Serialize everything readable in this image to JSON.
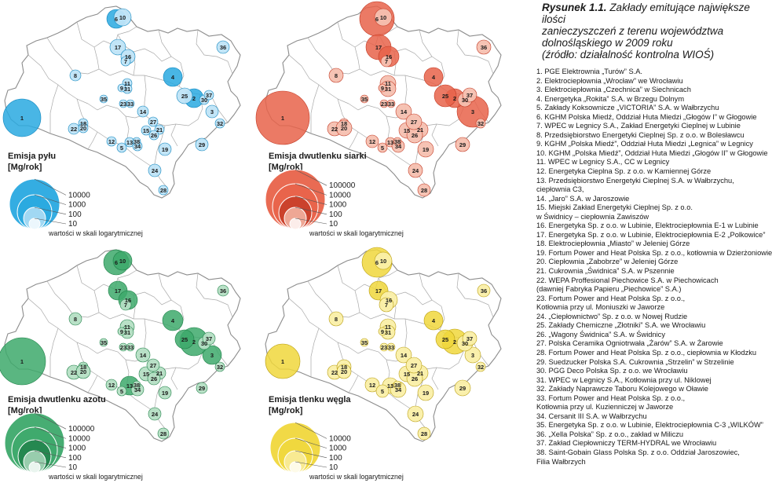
{
  "figure": {
    "caption_label": "Rysunek 1.1.",
    "caption_lines": [
      "Zakłady emitujące największe ilości",
      "zanieczyszczeń z terenu województwa",
      "dolnośląskiego w 2009 roku",
      "(źródło: działalność kontrolna WIOŚ)"
    ]
  },
  "panels": [
    {
      "id": "pm",
      "title_lines": [
        "Emisja pyłu",
        "[Mg/rok]"
      ],
      "scale_values": [
        "10000",
        "1000",
        "100",
        "10"
      ],
      "scale_note": "wartości w skali logarytmicznej",
      "colors": {
        "fill": "#29a9e0",
        "light": "#bfe4f7",
        "edge": "#0d84bd"
      },
      "sizes": {
        "1": 24,
        "2": 12,
        "3": 8,
        "4": 12,
        "5": 6,
        "6": 12,
        "7": 6,
        "8": 7,
        "9": 5,
        "10": 11,
        "11": 6,
        "12": 6,
        "13": 6,
        "14": 7,
        "15": 6,
        "16": 9,
        "17": 10,
        "18": 6,
        "19": 8,
        "20": 6,
        "21": 6,
        "22": 7,
        "23": 5,
        "24": 8,
        "25": 10,
        "26": 6,
        "27": 6,
        "28": 6,
        "29": 8,
        "30": 6,
        "31": 6,
        "32": 6,
        "33": 5,
        "34": 6,
        "35": 5,
        "36": 8,
        "37": 6,
        "38": 5
      }
    },
    {
      "id": "so2",
      "title_lines": [
        "Emisja dwutlenku siarki",
        "[Mg/rok]"
      ],
      "scale_values": [
        "100000",
        "10000",
        "1000",
        "100",
        "10"
      ],
      "scale_note": "wartości w skali logarytmicznej",
      "colors": {
        "fill": "#e8634a",
        "light": "#f6c0b0",
        "edge": "#c33a24"
      },
      "sizes": {
        "1": 34,
        "2": 12,
        "3": 20,
        "4": 12,
        "5": 6,
        "6": 22,
        "7": 7,
        "8": 9,
        "9": 5,
        "10": 11,
        "11": 10,
        "12": 8,
        "13": 6,
        "14": 10,
        "15": 10,
        "16": 13,
        "17": 16,
        "18": 6,
        "19": 10,
        "20": 10,
        "21": 10,
        "22": 9,
        "23": 5,
        "24": 9,
        "25": 14,
        "26": 10,
        "27": 10,
        "28": 8,
        "29": 9,
        "30": 9,
        "31": 10,
        "32": 6,
        "33": 5,
        "34": 8,
        "35": 5,
        "36": 9,
        "37": 9,
        "38": 5
      }
    },
    {
      "id": "no2",
      "title_lines": [
        "Emisja dwutlenku azotu",
        "[Mg/rok]"
      ],
      "scale_values": [
        "100000",
        "10000",
        "1000",
        "100",
        "10"
      ],
      "scale_note": "wartości w skali logarytmicznej",
      "colors": {
        "fill": "#3da96b",
        "light": "#b5dfc4",
        "edge": "#1f8048"
      },
      "sizes": {
        "1": 30,
        "2": 18,
        "3": 12,
        "4": 13,
        "5": 6,
        "6": 16,
        "7": 7,
        "8": 8,
        "9": 5,
        "10": 12,
        "11": 9,
        "12": 7,
        "13": 12,
        "14": 9,
        "15": 9,
        "16": 12,
        "17": 12,
        "18": 6,
        "19": 8,
        "20": 9,
        "21": 8,
        "22": 9,
        "23": 5,
        "24": 8,
        "25": 12,
        "26": 8,
        "27": 8,
        "28": 7,
        "29": 7,
        "30": 8,
        "31": 8,
        "32": 6,
        "33": 5,
        "34": 8,
        "35": 5,
        "36": 7,
        "37": 8,
        "38": 5
      }
    },
    {
      "id": "co",
      "title_lines": [
        "Emisja tlenku węgla",
        "[Mg/rok]"
      ],
      "scale_values": [
        "10000",
        "1000",
        "100",
        "10"
      ],
      "scale_note": "wartości w skali logarytmicznej",
      "colors": {
        "fill": "#f0d73c",
        "light": "#faefa8",
        "edge": "#b89d10"
      },
      "sizes": {
        "1": 22,
        "2": 16,
        "3": 10,
        "4": 12,
        "5": 8,
        "6": 19,
        "7": 9,
        "8": 9,
        "9": 5,
        "10": 11,
        "11": 10,
        "12": 9,
        "13": 10,
        "14": 10,
        "15": 10,
        "16": 11,
        "17": 12,
        "18": 9,
        "19": 10,
        "20": 9,
        "21": 10,
        "22": 9,
        "23": 5,
        "24": 10,
        "25": 12,
        "26": 10,
        "27": 10,
        "28": 8,
        "29": 10,
        "30": 10,
        "31": 9,
        "32": 6,
        "33": 5,
        "34": 10,
        "35": 5,
        "36": 8,
        "37": 9,
        "38": 5
      }
    }
  ],
  "plant_labels": [
    "1",
    "2",
    "3",
    "4",
    "5",
    "6",
    "7",
    "8",
    "9",
    "10",
    "11",
    "12",
    "13",
    "14",
    "15",
    "16",
    "17",
    "18",
    "19",
    "20",
    "21",
    "22",
    "23",
    "24",
    "25",
    "26",
    "27",
    "28",
    "29",
    "30",
    "31",
    "32",
    "33",
    "34",
    "35",
    "36",
    "37",
    "38"
  ],
  "plant_list": [
    "1. PGE Elektrownia „Turów” S.A.",
    "2. Elektrociepłownia „Wrocław” we Wrocławiu",
    "3. Elektrociepłownia „Czechnica” w Siechnicach",
    "4. Energetyka „Rokita” S.A. w Brzegu Dolnym",
    "5. Zakłady Koksownicze „VICTORIA” S.A. w Wałbrzychu",
    "6. KGHM Polska Miedź, Oddział Huta Miedzi „Głogów I” w Głogowie",
    "7. WPEC w Legnicy S.A., Zakład Energetyki Cieplnej w Lubinie",
    "8. Przedsiębiorstwo Energetyki Cieplnej Sp. z o.o. w Bolesławcu",
    "9. KGHM „Polska Miedź”, Oddział Huta Miedzi „Legnica” w Legnicy",
    "10. KGHM „Polska Miedź”, Oddział Huta Miedzi „Głogów II” w Głogowie",
    "11. WPEC w Legnicy S.A., CC w Legnicy",
    "12. Energetyka Cieplna Sp. z o.o. w Kamiennej Górze",
    "13. Przedsiębiorstwo Energetyki Cieplnej S.A. w Wałbrzychu,",
    "      ciepłownia C3,",
    "14. „Jaro” S.A. w Jaroszowie",
    "15. Miejski Zakład Energetyki Cieplnej Sp. z o.o.",
    "      w Świdnicy – ciepłownia Zawiszów",
    "16. Energetyka Sp. z o.o. w Lubinie, Elektrociepłownia E-1 w Lubinie",
    "17. Energetyka Sp. z o.o. w Lubinie, Elektrociepłownia E-2 „Polkowice”",
    "18. Elektrociepłownia „Miasto” w Jeleniej Górze",
    "19. Fortum Power and Heat Polska Sp. z o.o., kotłownia w Dzierżoniowie",
    "20. Ciepłownia „Zabobrze” w Jeleniej Górze",
    "21. Cukrownia „Świdnica” S.A. w Pszennie",
    "22.  WEPA Proffesional Piechowice  S.A. w Piechowicach",
    "      (dawniej Fabryka Papieru „Piechowice”  S.A.)",
    "23. Fortum Power and Heat Polska Sp. z o.o.,",
    "      Kotłownia przy ul. Moniuszki w Jaworze",
    "24. „Ciepłownictwo” Sp. z o.o. w Nowej Rudzie",
    "25. Zakłady Chemiczne „Złotniki” S.A. we Wrocławiu",
    "26. „Wagony Świdnica” S.A. w  Świdnicy",
    "27. Polska Ceramika Ogniotrwała „Żarów” S.A. w Żarowie",
    "28. Fortum Power and Heat Polska Sp. z o.o., ciepłownia w Kłodzku",
    "29. Suedzucker Polska S.A. Cukrownia „Strzelin” w Strzelinie",
    "30. PGG Deco Polska Sp. z o.o. we Wrocławiu",
    "31. WPEC w Legnicy S.A., Kotłownia przy ul. Niklowej",
    "32. Zakłady Naprawcze Taboru Kolejowego w Oławie",
    "33. Fortum Power and Heat Polska Sp. z o.o.,",
    "      Kotłownia przy ul. Kuzienniczej w Jaworze",
    "34. Cersanit III S.A. w Wałbrzychu",
    "35. Energetyka Sp. z o.o. w Lubinie, Elektrociepłownia C-3 „WILKÓW”",
    "36. „Xella Polska” Sp. z o.o., zakład w Miliczu",
    "37. Zakład Ciepłowniczy TERM-HYDRAL we Wrocławiu",
    "38. Saint-Gobain Glass Polska Sp. z o.o. Oddział Jaroszowiec,",
    "      Filia Wałbrzych"
  ]
}
